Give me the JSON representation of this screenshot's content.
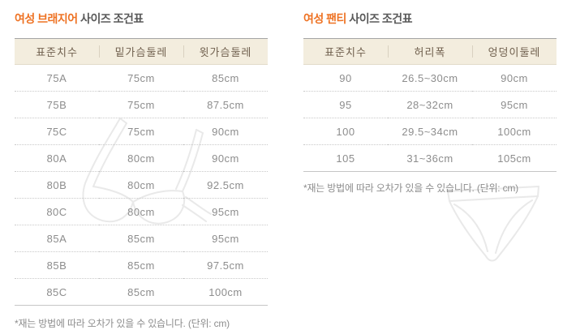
{
  "colors": {
    "title_accent": "#ee7223",
    "title_text": "#595959",
    "header_bg": "#f3edde",
    "header_text": "#70604e",
    "body_text": "#8d8d8d",
    "table_top_border": "#a5a5a5",
    "table_bottom_border": "#c6c6c6",
    "dotted_separator": "#c9c9c9",
    "graphic_outline": "#e9e9e9"
  },
  "bra_table": {
    "title_accent": "여성 브래지어",
    "title_rest": " 사이즈 조건표",
    "columns": [
      "표준치수",
      "밑가슴둘레",
      "윗가슴둘레"
    ],
    "rows": [
      [
        "75A",
        "75cm",
        "85cm"
      ],
      [
        "75B",
        "75cm",
        "87.5cm"
      ],
      [
        "75C",
        "75cm",
        "90cm"
      ],
      [
        "80A",
        "80cm",
        "90cm"
      ],
      [
        "80B",
        "80cm",
        "92.5cm"
      ],
      [
        "80C",
        "80cm",
        "95cm"
      ],
      [
        "85A",
        "85cm",
        "95cm"
      ],
      [
        "85B",
        "85cm",
        "97.5cm"
      ],
      [
        "85C",
        "85cm",
        "100cm"
      ]
    ],
    "footnote": "*재는 방법에 따라 오차가 있을 수 있습니다. (단위: cm)"
  },
  "panty_table": {
    "title_accent": "여성 팬티",
    "title_rest": " 사이즈 조건표",
    "columns": [
      "표준치수",
      "허리폭",
      "엉덩이둘레"
    ],
    "rows": [
      [
        "90",
        "26.5~30cm",
        "90cm"
      ],
      [
        "95",
        "28~32cm",
        "95cm"
      ],
      [
        "100",
        "29.5~34cm",
        "100cm"
      ],
      [
        "105",
        "31~36cm",
        "105cm"
      ]
    ],
    "footnote": "*재는 방법에 따라 오차가 있을 수 있습니다. (단위: cm)"
  }
}
